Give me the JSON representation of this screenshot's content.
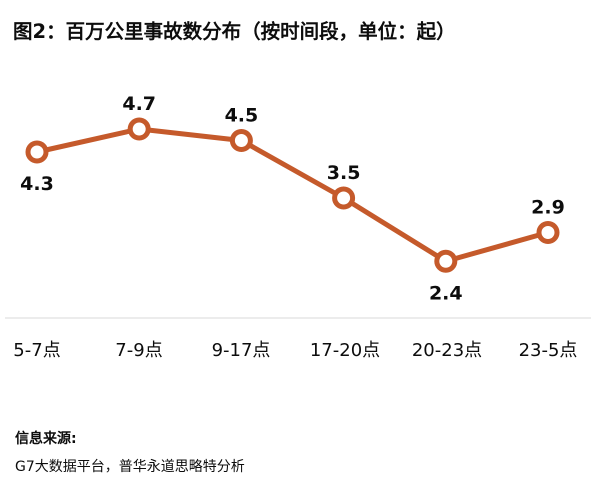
{
  "chart_data": {
    "type": "line",
    "title": "图2：百万公里事故数分布（按时间段，单位：起）",
    "categories": [
      "5-7点",
      "7-9点",
      "9-17点",
      "17-20点",
      "20-23点",
      "23-5点"
    ],
    "series": [
      {
        "values": [
          4.3,
          4.7,
          4.5,
          3.5,
          2.4,
          2.9
        ]
      }
    ],
    "ylim": [
      0,
      5.2
    ],
    "grid": false,
    "legend": "none",
    "line_color": "#C55A2B",
    "marker_fill": "#FFFFFF"
  },
  "source": {
    "label": "信息来源:",
    "text": "G7大数据平台，普华永道思略特分析"
  }
}
